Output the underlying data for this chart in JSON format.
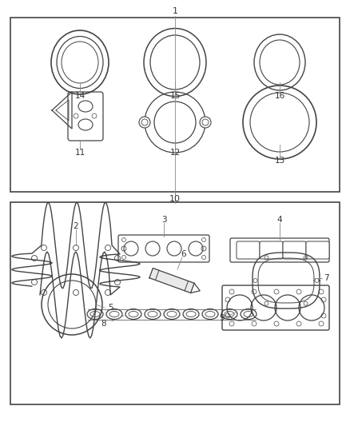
{
  "bg_color": "#ffffff",
  "line_color": "#444444",
  "fig_width": 4.38,
  "fig_height": 5.33,
  "dpi": 100
}
